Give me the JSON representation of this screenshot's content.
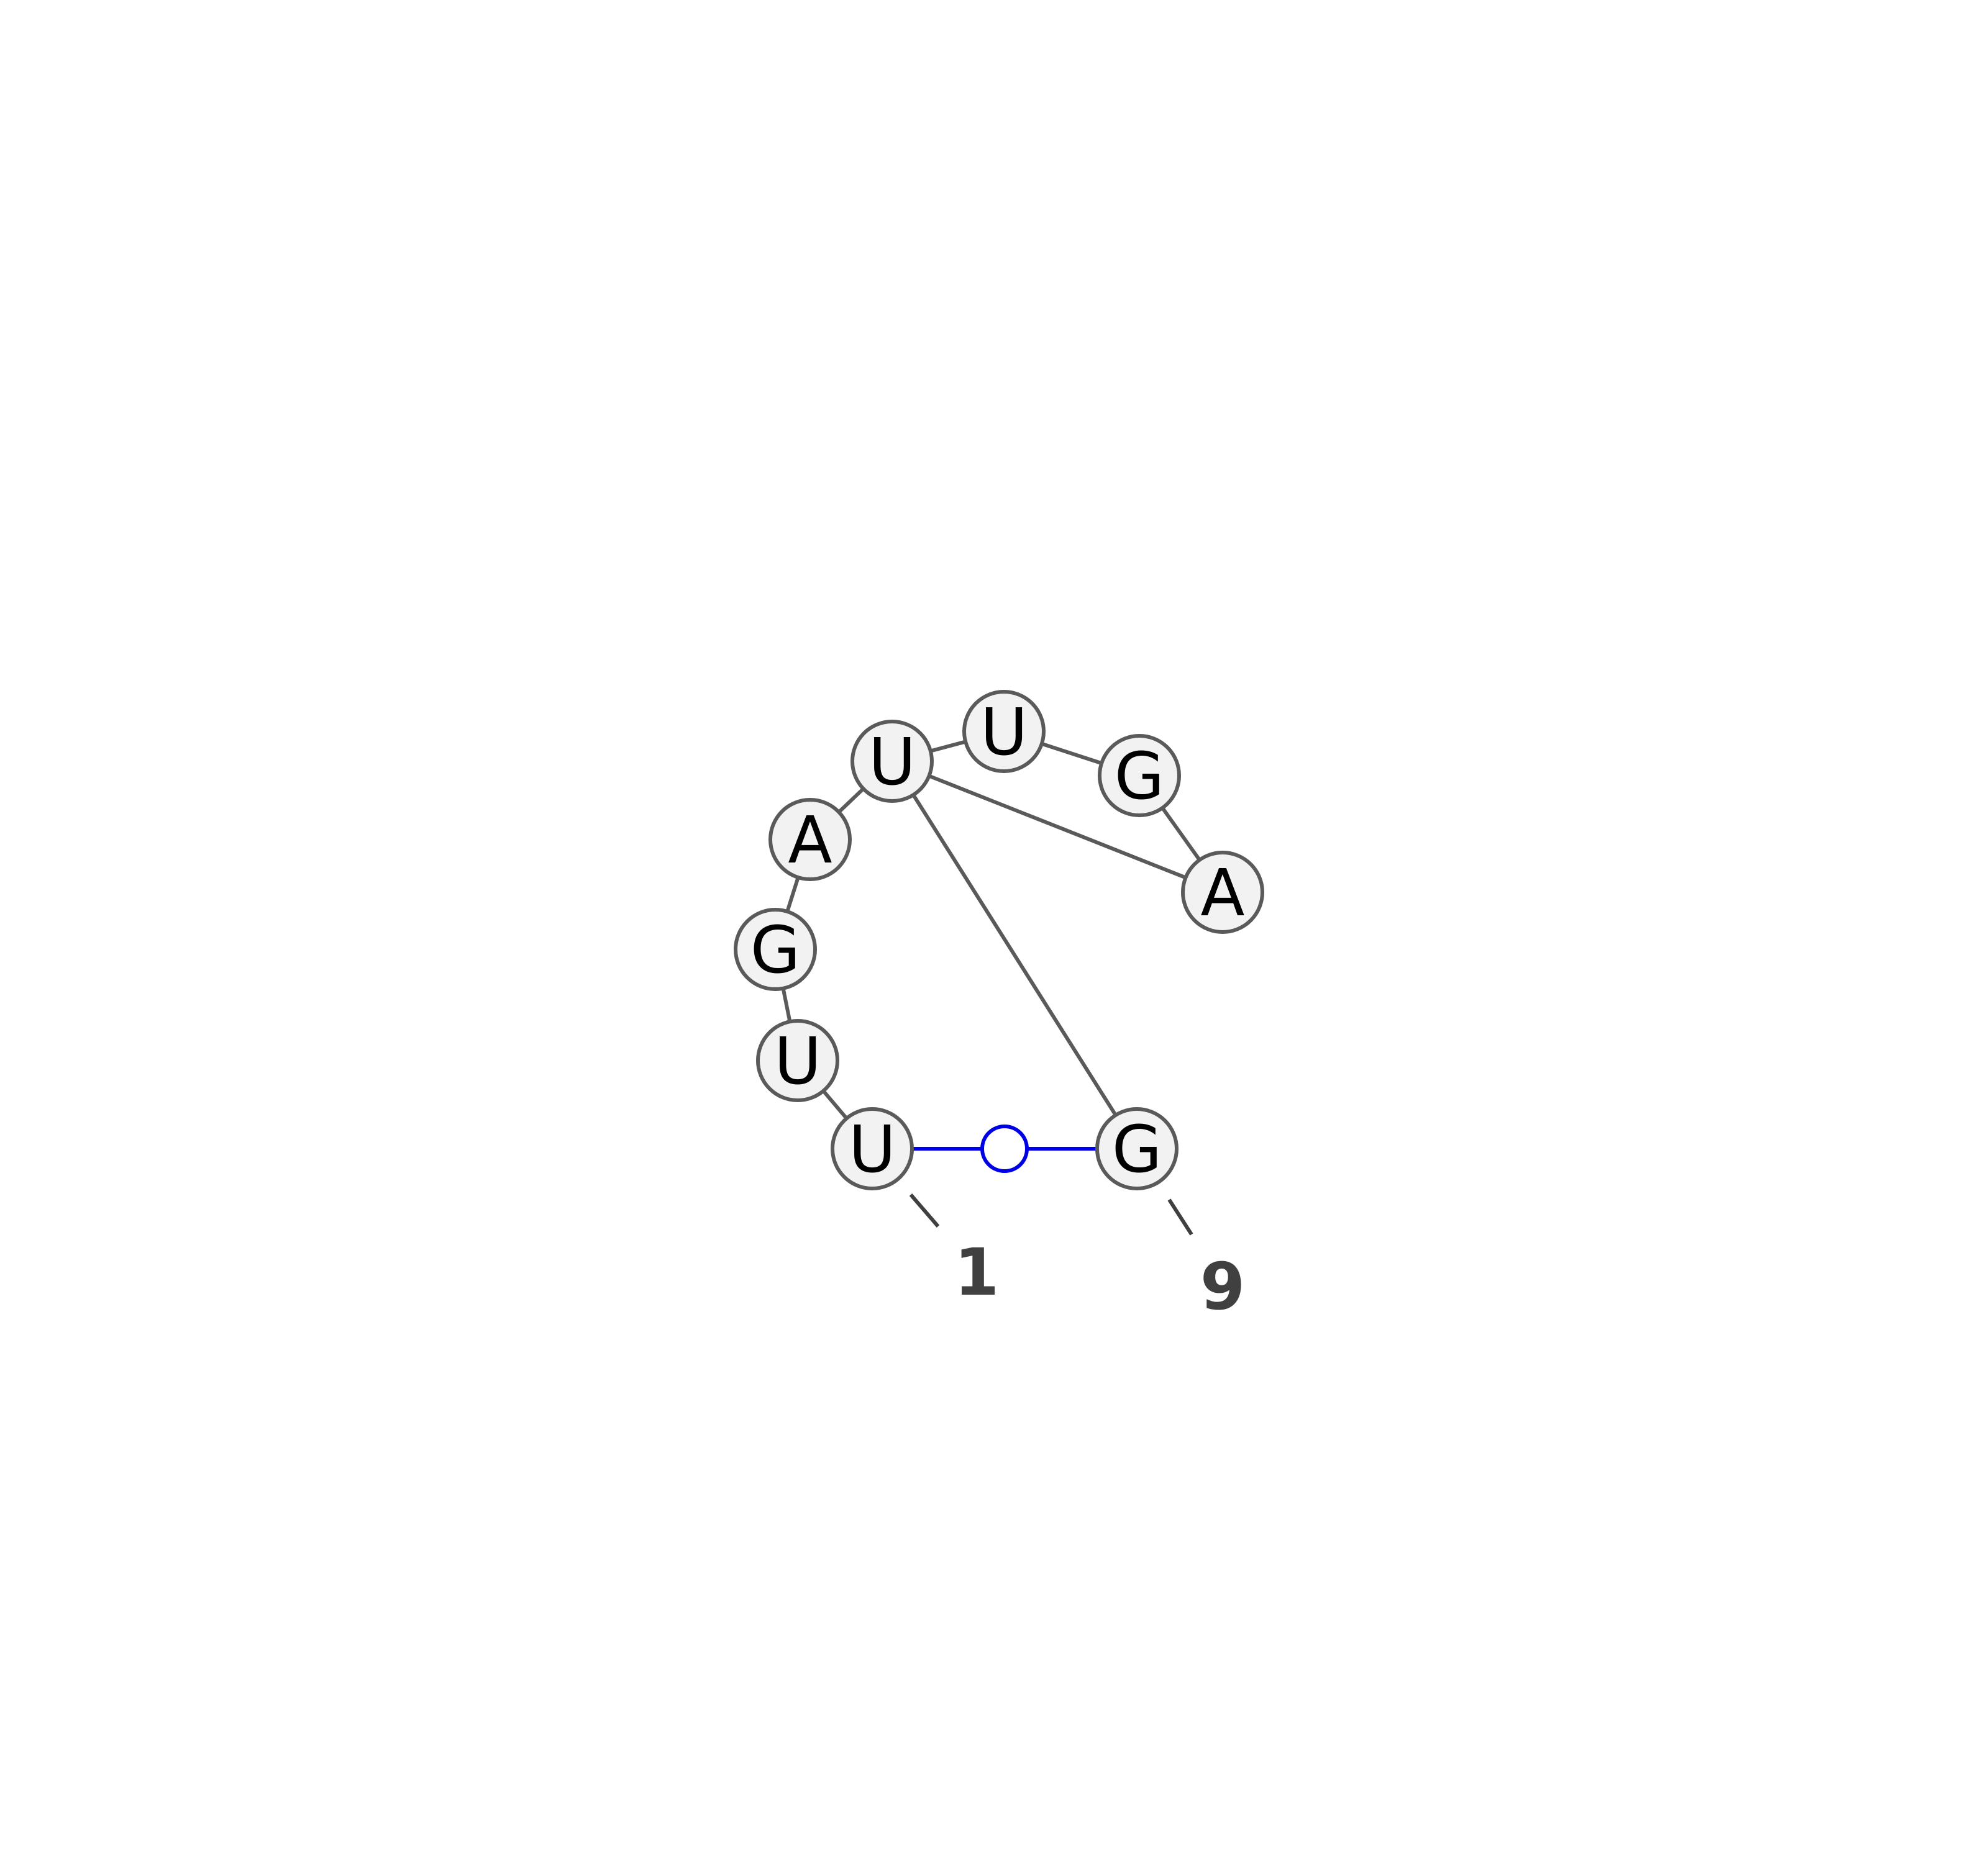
{
  "diagram": {
    "sequence": [
      "U",
      "U",
      "G",
      "A",
      "U",
      "U",
      "G",
      "A",
      "G"
    ],
    "edges_backbone": [
      [
        1,
        2
      ],
      [
        2,
        3
      ],
      [
        3,
        4
      ],
      [
        4,
        5
      ],
      [
        5,
        6
      ],
      [
        6,
        7
      ],
      [
        7,
        8
      ],
      [
        5,
        8
      ],
      [
        5,
        9
      ]
    ],
    "base_pairs": [
      {
        "from": 1,
        "to": 9,
        "type": "non-canonical"
      }
    ],
    "position_labels": [
      {
        "nucleotide": 1,
        "text": "1"
      },
      {
        "nucleotide": 9,
        "text": "9"
      }
    ],
    "colors": {
      "backbone": "#5a5a5a",
      "pair": "#0000e6",
      "node_fill": "#f2f2f2",
      "label": "#404040"
    }
  }
}
